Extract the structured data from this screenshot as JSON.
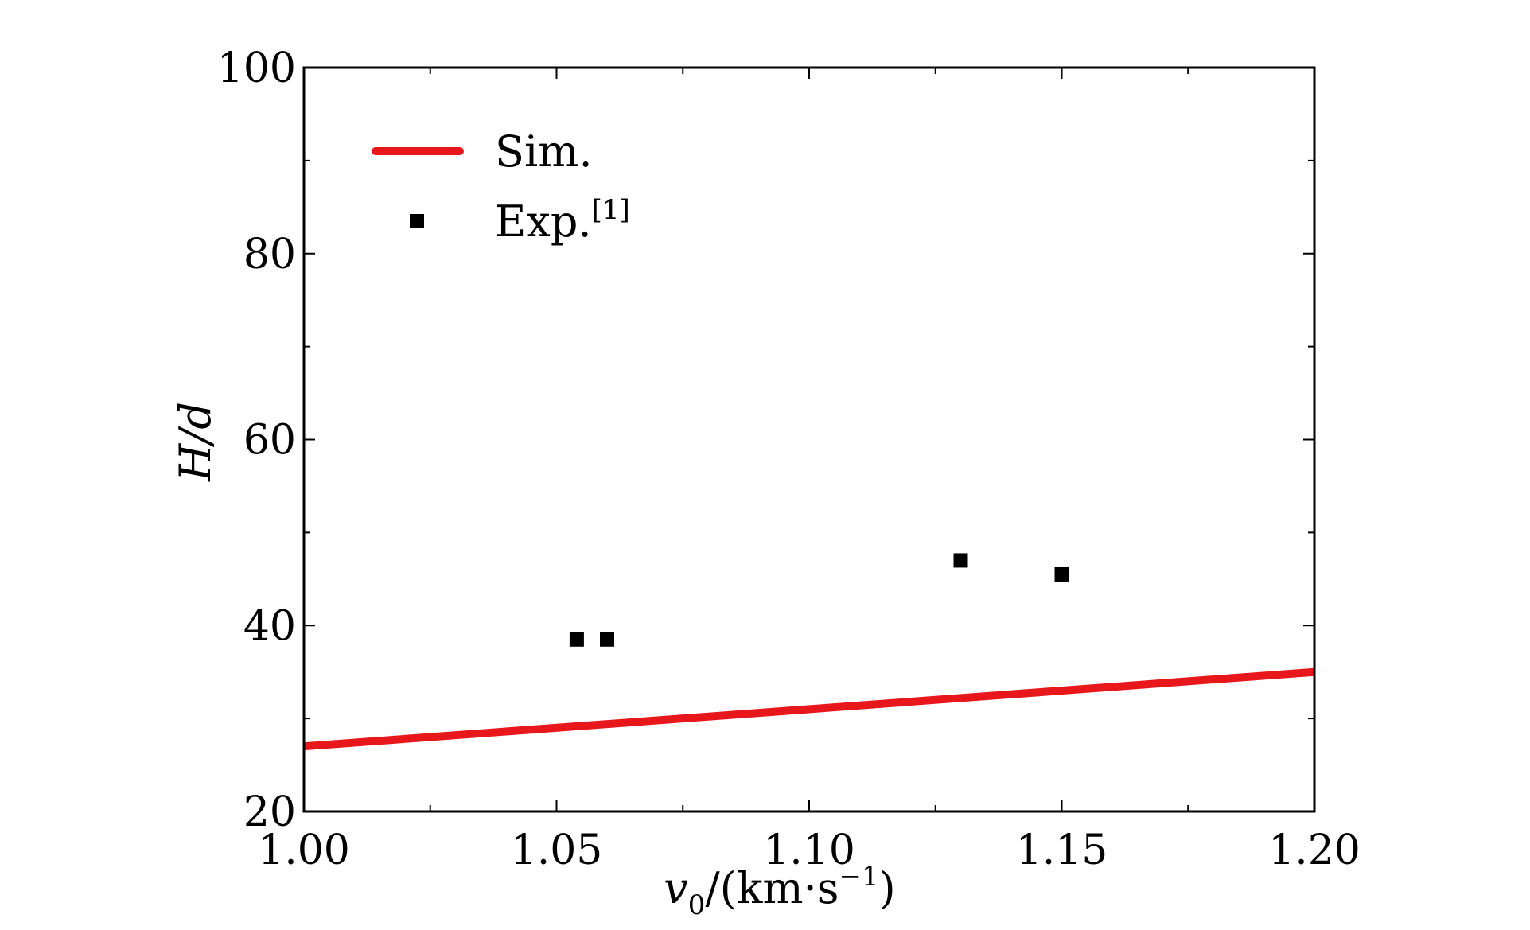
{
  "chart_data": {
    "type": "line",
    "x_axis": {
      "label_symbol": "v",
      "label_subscript": "0",
      "label_units": "/(km·s",
      "label_exponent": "−1",
      "label_close": ")",
      "range": [
        1.0,
        1.2
      ],
      "major_ticks": [
        1.0,
        1.05,
        1.1,
        1.15,
        1.2
      ],
      "tick_labels": [
        "1.00",
        "1.05",
        "1.10",
        "1.15",
        "1.20"
      ]
    },
    "y_axis": {
      "label": "H/d",
      "range": [
        20,
        100
      ],
      "major_ticks": [
        20,
        40,
        60,
        80,
        100
      ],
      "tick_labels": [
        "20",
        "40",
        "60",
        "80",
        "100"
      ]
    },
    "grid": false,
    "legend_position": "top-left",
    "series": [
      {
        "name": "Sim.",
        "type": "line",
        "color": "#e8171c",
        "x": [
          1.0,
          1.2
        ],
        "y": [
          27.0,
          35.0
        ]
      },
      {
        "name": "Exp.",
        "name_superscript": "[1]",
        "type": "scatter",
        "marker": "square",
        "color": "#000000",
        "x": [
          1.054,
          1.06,
          1.13,
          1.15
        ],
        "y": [
          38.5,
          38.5,
          47.0,
          45.5
        ]
      }
    ]
  }
}
